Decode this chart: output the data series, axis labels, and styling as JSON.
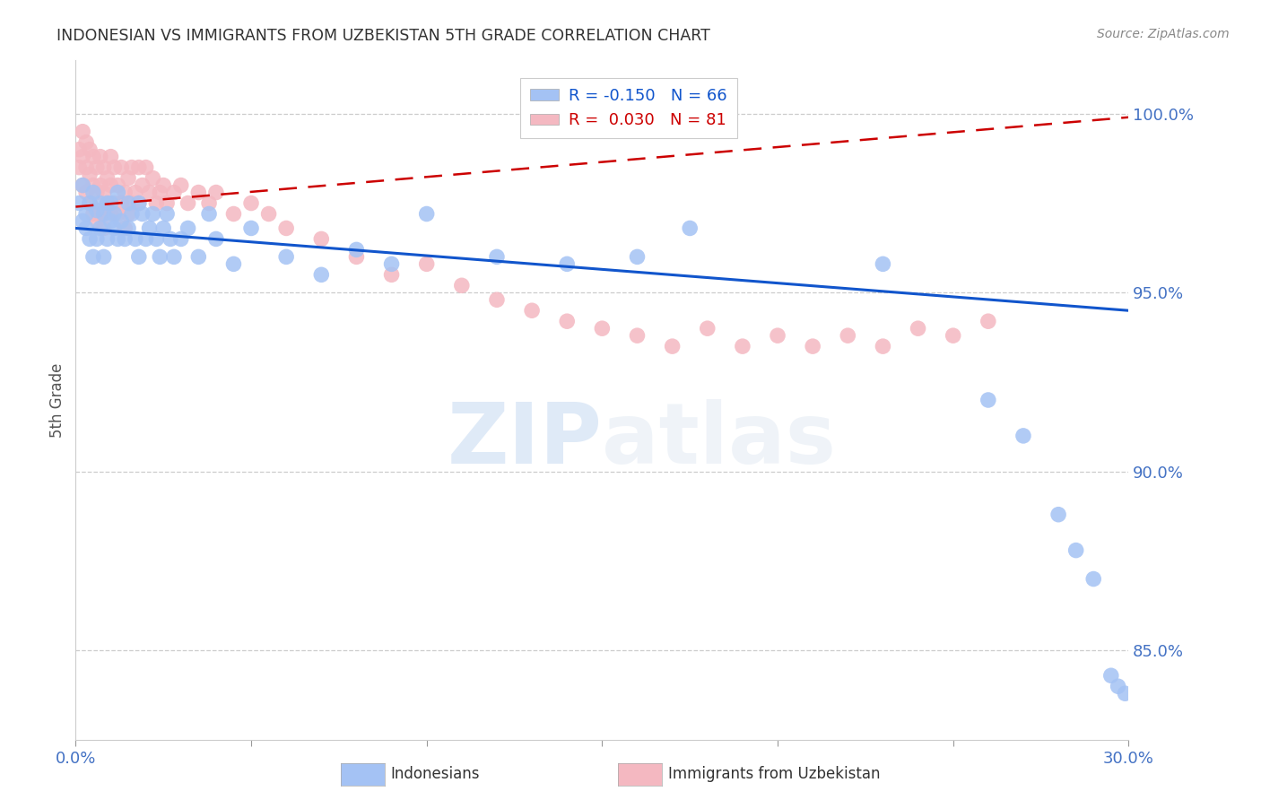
{
  "title": "INDONESIAN VS IMMIGRANTS FROM UZBEKISTAN 5TH GRADE CORRELATION CHART",
  "source": "Source: ZipAtlas.com",
  "ylabel": "5th Grade",
  "ytick_labels": [
    "85.0%",
    "90.0%",
    "95.0%",
    "100.0%"
  ],
  "ytick_values": [
    0.85,
    0.9,
    0.95,
    1.0
  ],
  "xlim": [
    0.0,
    0.3
  ],
  "ylim": [
    0.825,
    1.015
  ],
  "legend_blue_r": "R = -0.150",
  "legend_blue_n": "N = 66",
  "legend_pink_r": "R =  0.030",
  "legend_pink_n": "N = 81",
  "blue_color": "#a4c2f4",
  "pink_color": "#f4b8c1",
  "blue_line_color": "#1155cc",
  "pink_line_color": "#cc0000",
  "axis_color": "#4472c4",
  "blue_x": [
    0.001,
    0.002,
    0.002,
    0.003,
    0.003,
    0.004,
    0.004,
    0.005,
    0.005,
    0.006,
    0.006,
    0.007,
    0.007,
    0.008,
    0.008,
    0.009,
    0.009,
    0.01,
    0.01,
    0.011,
    0.011,
    0.012,
    0.012,
    0.013,
    0.014,
    0.015,
    0.015,
    0.016,
    0.017,
    0.018,
    0.018,
    0.019,
    0.02,
    0.021,
    0.022,
    0.023,
    0.024,
    0.025,
    0.026,
    0.027,
    0.028,
    0.03,
    0.032,
    0.035,
    0.038,
    0.04,
    0.045,
    0.05,
    0.06,
    0.07,
    0.08,
    0.09,
    0.1,
    0.12,
    0.14,
    0.16,
    0.175,
    0.23,
    0.26,
    0.27,
    0.28,
    0.285,
    0.29,
    0.295,
    0.297,
    0.299
  ],
  "blue_y": [
    0.975,
    0.98,
    0.97,
    0.968,
    0.972,
    0.975,
    0.965,
    0.978,
    0.96,
    0.973,
    0.965,
    0.975,
    0.968,
    0.972,
    0.96,
    0.975,
    0.965,
    0.97,
    0.975,
    0.968,
    0.972,
    0.965,
    0.978,
    0.97,
    0.965,
    0.975,
    0.968,
    0.972,
    0.965,
    0.975,
    0.96,
    0.972,
    0.965,
    0.968,
    0.972,
    0.965,
    0.96,
    0.968,
    0.972,
    0.965,
    0.96,
    0.965,
    0.968,
    0.96,
    0.972,
    0.965,
    0.958,
    0.968,
    0.96,
    0.955,
    0.962,
    0.958,
    0.972,
    0.96,
    0.958,
    0.96,
    0.968,
    0.958,
    0.92,
    0.91,
    0.888,
    0.878,
    0.87,
    0.843,
    0.84,
    0.838
  ],
  "pink_x": [
    0.001,
    0.001,
    0.002,
    0.002,
    0.002,
    0.003,
    0.003,
    0.003,
    0.004,
    0.004,
    0.004,
    0.005,
    0.005,
    0.005,
    0.006,
    0.006,
    0.006,
    0.007,
    0.007,
    0.007,
    0.008,
    0.008,
    0.008,
    0.009,
    0.009,
    0.01,
    0.01,
    0.01,
    0.011,
    0.011,
    0.012,
    0.012,
    0.013,
    0.013,
    0.014,
    0.014,
    0.015,
    0.015,
    0.016,
    0.016,
    0.017,
    0.018,
    0.018,
    0.019,
    0.02,
    0.021,
    0.022,
    0.023,
    0.024,
    0.025,
    0.026,
    0.028,
    0.03,
    0.032,
    0.035,
    0.038,
    0.04,
    0.045,
    0.05,
    0.055,
    0.06,
    0.07,
    0.08,
    0.09,
    0.1,
    0.11,
    0.12,
    0.13,
    0.14,
    0.15,
    0.16,
    0.17,
    0.18,
    0.19,
    0.2,
    0.21,
    0.22,
    0.23,
    0.24,
    0.25,
    0.26
  ],
  "pink_y": [
    0.99,
    0.985,
    0.995,
    0.988,
    0.98,
    0.992,
    0.985,
    0.978,
    0.99,
    0.983,
    0.975,
    0.988,
    0.98,
    0.972,
    0.985,
    0.978,
    0.97,
    0.988,
    0.98,
    0.972,
    0.985,
    0.978,
    0.968,
    0.982,
    0.975,
    0.988,
    0.98,
    0.972,
    0.985,
    0.975,
    0.98,
    0.972,
    0.985,
    0.975,
    0.978,
    0.968,
    0.982,
    0.972,
    0.985,
    0.975,
    0.978,
    0.985,
    0.975,
    0.98,
    0.985,
    0.978,
    0.982,
    0.975,
    0.978,
    0.98,
    0.975,
    0.978,
    0.98,
    0.975,
    0.978,
    0.975,
    0.978,
    0.972,
    0.975,
    0.972,
    0.968,
    0.965,
    0.96,
    0.955,
    0.958,
    0.952,
    0.948,
    0.945,
    0.942,
    0.94,
    0.938,
    0.935,
    0.94,
    0.935,
    0.938,
    0.935,
    0.938,
    0.935,
    0.94,
    0.938,
    0.942
  ],
  "blue_line_x": [
    0.0,
    0.3
  ],
  "blue_line_y": [
    0.968,
    0.945
  ],
  "pink_line_x": [
    0.0,
    0.3
  ],
  "pink_line_y": [
    0.974,
    0.999
  ]
}
